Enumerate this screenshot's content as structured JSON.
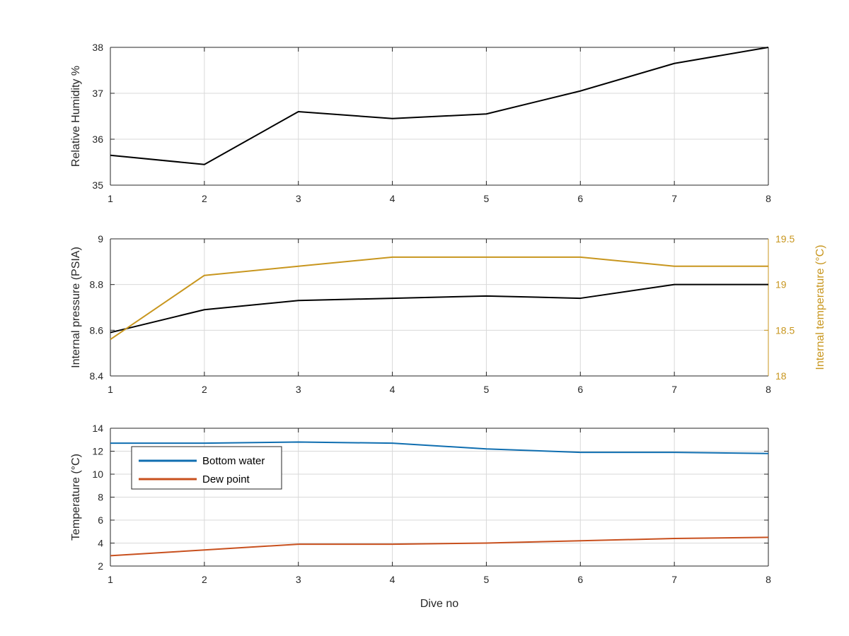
{
  "colors": {
    "black": "#000000",
    "gold": "#c8961e",
    "blue": "#0f6eb0",
    "orange": "#c8501e",
    "grid": "#d9d9d9",
    "axis": "#262626"
  },
  "chart_data": [
    {
      "type": "line",
      "title": "",
      "xlabel": "",
      "ylabel": "Relative Humidity %",
      "x": [
        1,
        2,
        3,
        4,
        5,
        6,
        7,
        8
      ],
      "xlim": [
        1,
        8
      ],
      "ylim": [
        35,
        38
      ],
      "xticks": [
        "1",
        "2",
        "3",
        "4",
        "5",
        "6",
        "7",
        "8"
      ],
      "yticks": [
        "35",
        "36",
        "37",
        "38"
      ],
      "grid": true,
      "series": [
        {
          "values": [
            35.65,
            35.45,
            36.6,
            36.45,
            36.55,
            37.05,
            37.65,
            38.0
          ],
          "color": "#000000"
        }
      ]
    },
    {
      "type": "line",
      "title": "",
      "xlabel": "",
      "ylabel": "Internal pressure (PSIA)",
      "ylabel_right": "Internal temperature (°C)",
      "x": [
        1,
        2,
        3,
        4,
        5,
        6,
        7,
        8
      ],
      "xlim": [
        1,
        8
      ],
      "ylim": [
        8.4,
        9.0
      ],
      "ylim_right": [
        18,
        19.5
      ],
      "xticks": [
        "1",
        "2",
        "3",
        "4",
        "5",
        "6",
        "7",
        "8"
      ],
      "yticks": [
        "8.4",
        "8.6",
        "8.8",
        "9"
      ],
      "yticks_right": [
        "18",
        "18.5",
        "19",
        "19.5"
      ],
      "grid": true,
      "series": [
        {
          "values": [
            8.59,
            8.69,
            8.73,
            8.74,
            8.75,
            8.74,
            8.8,
            8.8
          ],
          "axis": "left",
          "color": "#000000"
        },
        {
          "values": [
            18.4,
            19.1,
            19.2,
            19.3,
            19.3,
            19.3,
            19.2,
            19.2
          ],
          "axis": "right",
          "color": "#c8961e"
        }
      ]
    },
    {
      "type": "line",
      "title": "",
      "xlabel": "Dive no",
      "ylabel": "Temperature (°C)",
      "x": [
        1,
        2,
        3,
        4,
        5,
        6,
        7,
        8
      ],
      "xlim": [
        1,
        8
      ],
      "ylim": [
        2,
        14
      ],
      "xticks": [
        "1",
        "2",
        "3",
        "4",
        "5",
        "6",
        "7",
        "8"
      ],
      "yticks": [
        "2",
        "4",
        "6",
        "8",
        "10",
        "12",
        "14"
      ],
      "grid": true,
      "legend": "top-left",
      "series": [
        {
          "name": "Bottom water",
          "values": [
            12.7,
            12.7,
            12.8,
            12.7,
            12.2,
            11.9,
            11.9,
            11.8
          ],
          "color": "#0f6eb0"
        },
        {
          "name": "Dew point",
          "values": [
            2.9,
            3.4,
            3.9,
            3.9,
            4.0,
            4.2,
            4.4,
            4.5
          ],
          "color": "#c8501e"
        }
      ]
    }
  ]
}
